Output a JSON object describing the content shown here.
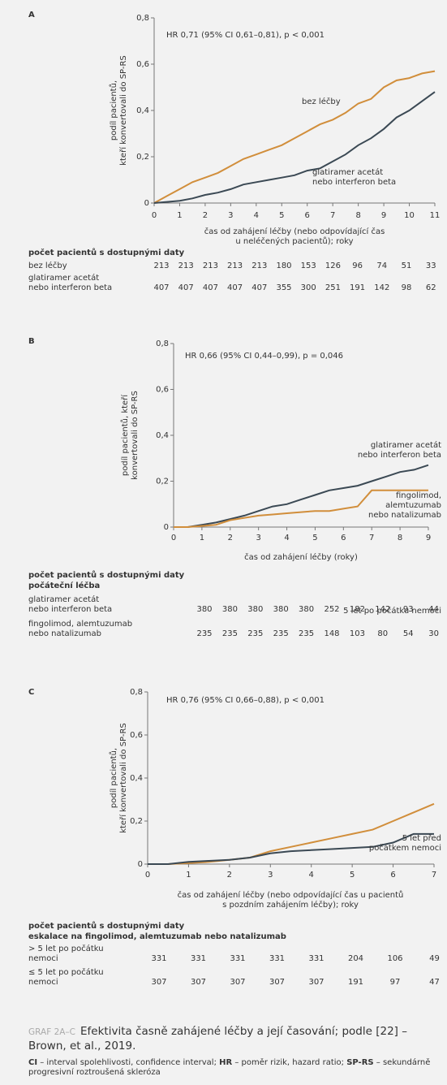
{
  "chart_data": [
    {
      "type": "line",
      "panel": "A",
      "annotation": "HR 0,71 (95% CI 0,61–0,81), p < 0,001",
      "y_label": "podíl pacientů,\nkteří konvertovali do SP-RS",
      "x_label": "čas od zahájení léčby (nebo odpovídající čas\nu neléčených pacientů); roky",
      "xlim": [
        0,
        11
      ],
      "ylim": [
        0,
        0.8
      ],
      "xticks": [
        0,
        1,
        2,
        3,
        4,
        5,
        6,
        7,
        8,
        9,
        10,
        11
      ],
      "yticks": [
        0,
        {
          "value": 0.2,
          "label": "0,2"
        },
        {
          "value": 0.4,
          "label": "0,4"
        },
        {
          "value": 0.6,
          "label": "0,6"
        },
        {
          "value": 0.8,
          "label": "0,8"
        }
      ],
      "x": [
        0,
        0.5,
        1,
        1.5,
        2,
        2.5,
        3,
        3.5,
        4,
        4.5,
        5,
        5.5,
        6,
        6.5,
        7,
        7.5,
        8,
        8.5,
        9,
        9.5,
        10,
        10.5,
        11
      ],
      "series": [
        {
          "name": "bez léčby",
          "color": "#d18e3b",
          "values": [
            0,
            0.03,
            0.06,
            0.09,
            0.11,
            0.13,
            0.16,
            0.19,
            0.21,
            0.23,
            0.25,
            0.28,
            0.31,
            0.34,
            0.36,
            0.39,
            0.43,
            0.45,
            0.5,
            0.53,
            0.54,
            0.56,
            0.57
          ]
        },
        {
          "name": "glatiramer acetát\nnebo interferon beta",
          "color": "#3b4954",
          "values": [
            0,
            0.005,
            0.01,
            0.02,
            0.035,
            0.045,
            0.06,
            0.08,
            0.09,
            0.1,
            0.11,
            0.12,
            0.14,
            0.15,
            0.18,
            0.21,
            0.25,
            0.28,
            0.32,
            0.37,
            0.4,
            0.44,
            0.48
          ]
        }
      ],
      "risk_table": {
        "title": "počet pacientů s dostupnými daty",
        "rows": [
          {
            "label": "bez léčby",
            "values": [
              213,
              213,
              213,
              213,
              213,
              180,
              153,
              126,
              96,
              74,
              51,
              33
            ]
          },
          {
            "label": "glatiramer acetát\nnebo interferon beta",
            "values": [
              407,
              407,
              407,
              407,
              407,
              355,
              300,
              251,
              191,
              142,
              98,
              62
            ]
          }
        ]
      }
    },
    {
      "type": "line",
      "panel": "B",
      "annotation": "HR 0,66 (95% CI 0,44–0,99), p = 0,046",
      "y_label": "podíl pacientů, kteří\nkonvertovali do SP-RS",
      "x_label": "čas od zahájení léčby (roky)",
      "xlim": [
        0,
        9
      ],
      "ylim": [
        0,
        0.8
      ],
      "xticks": [
        0,
        1,
        2,
        3,
        4,
        5,
        6,
        7,
        8,
        9
      ],
      "yticks": [
        0,
        {
          "value": 0.2,
          "label": "0,2"
        },
        {
          "value": 0.4,
          "label": "0,4"
        },
        {
          "value": 0.6,
          "label": "0,6"
        },
        {
          "value": 0.8,
          "label": "0,8"
        }
      ],
      "x": [
        0,
        0.5,
        1,
        1.5,
        2,
        2.5,
        3,
        3.5,
        4,
        4.5,
        5,
        5.5,
        6,
        6.5,
        7,
        7.5,
        8,
        8.5,
        9
      ],
      "series": [
        {
          "name": "glatiramer acetát\nnebo interferon beta",
          "color": "#3b4954",
          "values": [
            0,
            0,
            0.01,
            0.02,
            0.035,
            0.05,
            0.07,
            0.09,
            0.1,
            0.12,
            0.14,
            0.16,
            0.17,
            0.18,
            0.2,
            0.22,
            0.24,
            0.25,
            0.27
          ]
        },
        {
          "name": "fingolimod,\nalemtuzumab\nnebo natalizumab",
          "color": "#d18e3b",
          "values": [
            0,
            0,
            0.005,
            0.01,
            0.03,
            0.04,
            0.05,
            0.055,
            0.06,
            0.065,
            0.07,
            0.07,
            0.08,
            0.09,
            0.16,
            0.16,
            0.16,
            0.16,
            0.16
          ]
        }
      ],
      "risk_table": {
        "title": "počet pacientů s dostupnými daty",
        "subtitle": "počáteční léčba",
        "rows": [
          {
            "label": "glatiramer acetát\nnebo interferon beta",
            "values": [
              380,
              380,
              380,
              380,
              380,
              252,
              182,
              142,
              93,
              44
            ]
          },
          {
            "label": "fingolimod, alemtuzumab\nnebo natalizumab",
            "values": [
              235,
              235,
              235,
              235,
              235,
              148,
              103,
              80,
              54,
              30
            ]
          }
        ]
      }
    },
    {
      "type": "line",
      "panel": "C",
      "annotation": "HR 0,76 (95% CI 0,66–0,88), p < 0,001",
      "y_label": "podíl pacientů,\nkteří konvertovali do SP-RS",
      "x_label": "čas od zahájení léčby (nebo odpovídající čas u pacientů\ns pozdním zahájením léčby); roky",
      "xlim": [
        0,
        7
      ],
      "ylim": [
        0,
        0.8
      ],
      "xticks": [
        0,
        1,
        2,
        3,
        4,
        5,
        6,
        7
      ],
      "yticks": [
        0,
        {
          "value": 0.2,
          "label": "0,2"
        },
        {
          "value": 0.4,
          "label": "0,4"
        },
        {
          "value": 0.6,
          "label": "0,6"
        },
        {
          "value": 0.8,
          "label": "0,8"
        }
      ],
      "x": [
        0,
        0.5,
        1,
        1.5,
        2,
        2.5,
        3,
        3.5,
        4,
        4.5,
        5,
        5.5,
        6,
        6.5,
        7
      ],
      "series": [
        {
          "name": "5 let po počátku nemoci",
          "color": "#d18e3b",
          "values": [
            0,
            0,
            0.005,
            0.01,
            0.02,
            0.03,
            0.06,
            0.08,
            0.1,
            0.12,
            0.14,
            0.16,
            0.2,
            0.24,
            0.28
          ]
        },
        {
          "name": "5 let před\npočátkem nemoci",
          "color": "#3b4954",
          "values": [
            0,
            0,
            0.01,
            0.015,
            0.02,
            0.03,
            0.05,
            0.06,
            0.065,
            0.07,
            0.075,
            0.08,
            0.1,
            0.14,
            0.14
          ]
        }
      ],
      "risk_table": {
        "title": "počet pacientů s dostupnými daty",
        "subtitle": "eskalace na fingolimod, alemtuzumab nebo natalizumab",
        "rows": [
          {
            "label": "> 5 let po počátku\nnemoci",
            "values": [
              331,
              331,
              331,
              331,
              331,
              204,
              106,
              49
            ]
          },
          {
            "label": "≤ 5 let po počátku\nnemoci",
            "values": [
              307,
              307,
              307,
              307,
              307,
              191,
              97,
              47
            ]
          }
        ]
      }
    }
  ],
  "caption": {
    "label": "GRAF 2A–C",
    "text": "Efektivita časně zahájené léčby a její časování; podle [22] – Brown, et al., 2019.",
    "footnote": [
      {
        "abbr": "CI",
        "text": " – interval spolehlivosti, confidence interval; "
      },
      {
        "abbr": "HR",
        "text": " – poměr rizik, hazard ratio; "
      },
      {
        "abbr": "SP-RS",
        "text": " – sekundárně progresivní roztroušená skleróza"
      }
    ]
  }
}
